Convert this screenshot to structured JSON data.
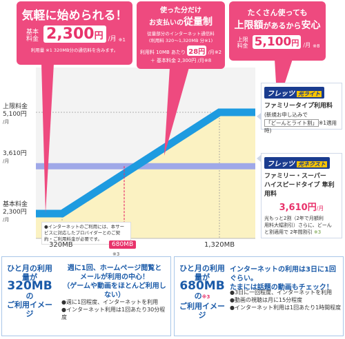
{
  "callouts": {
    "basic": {
      "title": "気軽に始められる！",
      "label": "基本料金",
      "amount": "2,300",
      "unit": "円",
      "per": "/月",
      "note_mark": "※1",
      "note": "利用量 ※1 320MB分の通信料を含みます。"
    },
    "usage": {
      "line1": "使った分だけ",
      "line2a": "お支払いの",
      "line2b": "従量制",
      "desc1": "従量部分のインターネット通信料",
      "desc2": "(利用料 320～1,320MB 分※1)",
      "rate_prefix": "利用料 10MB あたり",
      "rate": "28円",
      "rate_per": "/月",
      "rate_mark": "※2",
      "base": "＋ 基本料金 2,300円 /月",
      "base_mark": "※8"
    },
    "cap": {
      "line1": "たくさん使っても",
      "line2a": "上限額",
      "line2b": "があるから",
      "line2c": "安心",
      "label": "上限料金",
      "amount": "5,100",
      "unit": "円",
      "per": "/月",
      "mark": "※8"
    }
  },
  "y_labels": {
    "cap_title": "上限料金",
    "cap_value": "5,100円",
    "cap_per": "/月",
    "super_value": "3,610円",
    "super_per": "/月",
    "base_title": "基本料金",
    "base_value": "2,300円",
    "base_per": "/月"
  },
  "chart_note": "●インターネットのご利用には、本サービスに対応したプロバイダーとのご契約・ご利用料金が必要です。",
  "x_labels": {
    "a": "320MB",
    "b": "680MB",
    "b_mark": "※3",
    "c": "1,320MB"
  },
  "plan_family": {
    "logo": "フレッツ",
    "logo_tag": "光ライト",
    "title": "ファミリータイプ利用料",
    "sub1": "(新規お申し込みで",
    "sub2": "「どーんとライト割」",
    "sub2_mark": "※1",
    "sub2_end": "適用時)"
  },
  "plan_super": {
    "logo": "フレッツ",
    "logo_tag": "光ネクスト",
    "title1": "ファミリー・スーパー",
    "title2": "ハイスピードタイプ 隼利用料",
    "price": "3,610円",
    "price_per": "/月",
    "note1": "光もっと2割（2年で月額利",
    "note2": "用料大幅割引）さらに、どーん",
    "note3": "と割適用で 2年間割引",
    "note_mark": "※3"
  },
  "bottom_left": {
    "lead1": "ひと月の利用量が",
    "lead2": "320MB",
    "lead2b": "の",
    "lead3": "ご利用イメージ",
    "msg1": "週に1回、ホームページ閲覧と",
    "msg2": "メールが利用の中心！",
    "msg3": "（ゲームや動画をほとんど利用しない）",
    "b1": "●週に1回程度、インターネットを利用",
    "b2": "●インターネット利用は1回あたり30分程度"
  },
  "bottom_right": {
    "lead1": "ひと月の利用量が",
    "lead2": "680MB",
    "lead2b": "の",
    "lead_mark": "※3",
    "lead3": "ご利用イメージ",
    "msg1": "インターネットの利用は3日に1回ぐらい。",
    "msg2": "たまには話題の動画もチェック！",
    "b1": "●3日に一回程度、インターネットを利用",
    "b2": "●動画の視聴は月に15分程度",
    "b3": "●インターネット利用は1回あたり1時間程度"
  },
  "chart_data": {
    "type": "line",
    "x": [
      0,
      320,
      1320,
      1700
    ],
    "y": [
      2300,
      2300,
      5100,
      5100
    ],
    "reference_lines": [
      {
        "y": 3610,
        "color": "#9fa8e8"
      }
    ],
    "markers": [
      {
        "x": 680,
        "label": "680MB"
      }
    ],
    "x_ticks": [
      "320MB",
      "680MB",
      "1,320MB"
    ],
    "y_ticks": [
      "2,300円",
      "3,610円",
      "5,100円"
    ],
    "colors": {
      "line": "#1e9be0",
      "fill": "#fbf2c2",
      "super": "#9fa8e8",
      "marker": "#e8336b"
    }
  }
}
